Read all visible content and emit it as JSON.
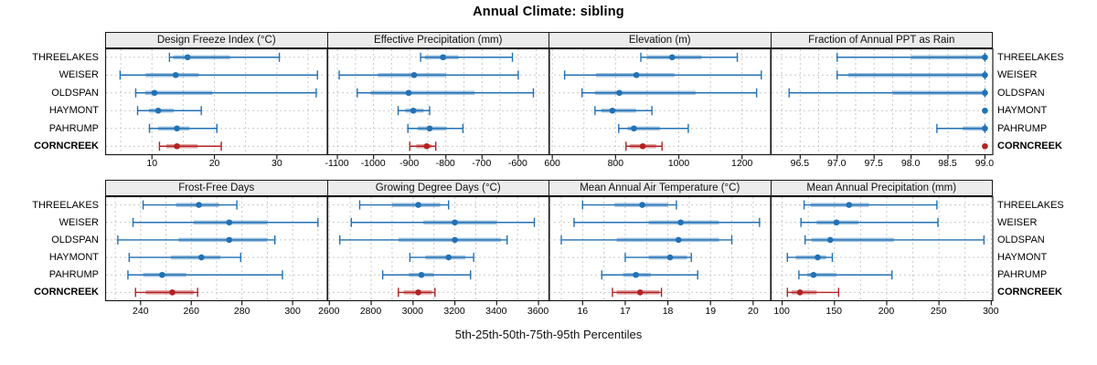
{
  "title": "Annual Climate: sibling",
  "caption": "5th-25th-50th-75th-95th Percentiles",
  "percentile_labels": [
    "5th",
    "25th",
    "50th",
    "75th",
    "95th"
  ],
  "colors": {
    "series_blue": "#2171b5",
    "highlight_red": "#b22222",
    "grid": "#c9c9c9",
    "panel_border": "#1a1a1a",
    "strip_background": "#ececec"
  },
  "stations": [
    {
      "name": "THREELAKES",
      "highlight": false
    },
    {
      "name": "WEISER",
      "highlight": false
    },
    {
      "name": "OLDSPAN",
      "highlight": false
    },
    {
      "name": "HAYMONT",
      "highlight": false
    },
    {
      "name": "PAHRUMP",
      "highlight": false
    },
    {
      "name": "CORNCREEK",
      "highlight": true
    }
  ],
  "chart_data": {
    "type": "scatter",
    "variant": "horizontal percentile interval plot (5-25-50-75-95), 2x4 lattice panels",
    "legend_position": "none",
    "grid": "dashed",
    "panels": [
      {
        "title": "Design Freeze Index (°C)",
        "row": 0,
        "col": 0,
        "xlim": [
          2.5,
          38
        ],
        "minor_step": 5,
        "major_ticks": [
          {
            "v": 10,
            "label": "10"
          },
          {
            "v": 20,
            "label": "20"
          },
          {
            "v": 30,
            "label": "30"
          }
        ],
        "series": {
          "THREELAKES": [
            12.8,
            13.4,
            15.7,
            22.5,
            30.4
          ],
          "WEISER": [
            4.9,
            9.0,
            13.8,
            17.5,
            36.5
          ],
          "OLDSPAN": [
            7.4,
            8.9,
            10.4,
            19.7,
            36.3
          ],
          "HAYMONT": [
            7.7,
            9.5,
            11.0,
            13.5,
            17.9
          ],
          "PAHRUMP": [
            9.6,
            11.0,
            14.0,
            16.0,
            20.4
          ],
          "CORNCREEK": [
            11.2,
            12.3,
            14.0,
            17.3,
            21.1
          ]
        }
      },
      {
        "title": "Effective Precipitation (mm)",
        "row": 0,
        "col": 1,
        "xlim": [
          -1128,
          -515
        ],
        "minor_step": 50,
        "major_ticks": [
          {
            "v": -1100,
            "label": "-1100"
          },
          {
            "v": -1000,
            "label": "-1000"
          },
          {
            "v": -900,
            "label": "-900"
          },
          {
            "v": -800,
            "label": "-800"
          },
          {
            "v": -700,
            "label": "-700"
          },
          {
            "v": -600,
            "label": "-600"
          }
        ],
        "series": {
          "THREELAKES": [
            -870,
            -858,
            -808,
            -765,
            -616
          ],
          "WEISER": [
            -1095,
            -988,
            -888,
            -800,
            -600
          ],
          "OLDSPAN": [
            -1045,
            -1008,
            -903,
            -720,
            -558
          ],
          "HAYMONT": [
            -932,
            -912,
            -890,
            -862,
            -845
          ],
          "PAHRUMP": [
            -905,
            -878,
            -845,
            -798,
            -753
          ],
          "CORNCREEK": [
            -900,
            -882,
            -853,
            -840,
            -828
          ]
        }
      },
      {
        "title": "Elevation (m)",
        "row": 0,
        "col": 2,
        "xlim": [
          588,
          1289
        ],
        "minor_step": 100,
        "major_ticks": [
          {
            "v": 600,
            "label": "600"
          },
          {
            "v": 800,
            "label": "800"
          },
          {
            "v": 1000,
            "label": "1000"
          },
          {
            "v": 1200,
            "label": "1200"
          }
        ],
        "series": {
          "THREELAKES": [
            880,
            899,
            979,
            1072,
            1185
          ],
          "WEISER": [
            639,
            738,
            866,
            986,
            1261
          ],
          "OLDSPAN": [
            694,
            735,
            812,
            1053,
            1246
          ],
          "HAYMONT": [
            735,
            755,
            790,
            865,
            915
          ],
          "PAHRUMP": [
            810,
            838,
            858,
            940,
            1030
          ],
          "CORNCREEK": [
            833,
            845,
            886,
            928,
            947
          ]
        }
      },
      {
        "title": "Fraction of Annual PPT as Rain",
        "row": 0,
        "col": 3,
        "xlim": [
          96.1,
          99.1
        ],
        "minor_step": 0.25,
        "major_ticks": [
          {
            "v": 96.5,
            "label": "96.5"
          },
          {
            "v": 97.0,
            "label": "97.0"
          },
          {
            "v": 97.5,
            "label": "97.5"
          },
          {
            "v": 98.0,
            "label": "98.0"
          },
          {
            "v": 98.5,
            "label": "98.5"
          },
          {
            "v": 99.0,
            "label": "99.0"
          }
        ],
        "series": {
          "THREELAKES": [
            97.0,
            98.0,
            99.0,
            99.0,
            99.0
          ],
          "WEISER": [
            97.0,
            97.15,
            99.0,
            99.0,
            99.0
          ],
          "OLDSPAN": [
            96.35,
            97.75,
            99.0,
            99.0,
            99.0
          ],
          "HAYMONT": [
            99.0,
            99.0,
            99.0,
            99.0,
            99.0
          ],
          "PAHRUMP": [
            98.35,
            98.7,
            99.0,
            99.0,
            99.0
          ],
          "CORNCREEK": [
            99.0,
            99.0,
            99.0,
            99.0,
            99.0
          ]
        }
      },
      {
        "title": "Frost-Free Days",
        "row": 1,
        "col": 0,
        "xlim": [
          226,
          313.5
        ],
        "minor_step": 10,
        "major_ticks": [
          {
            "v": 240,
            "label": "240"
          },
          {
            "v": 260,
            "label": "260"
          },
          {
            "v": 280,
            "label": "280"
          },
          {
            "v": 300,
            "label": "300"
          }
        ],
        "series": {
          "THREELAKES": [
            241,
            254,
            263,
            271,
            278
          ],
          "WEISER": [
            237,
            261,
            275,
            290,
            310
          ],
          "OLDSPAN": [
            231,
            255,
            275,
            290,
            293
          ],
          "HAYMONT": [
            235.5,
            252,
            264,
            271.5,
            279.5
          ],
          "PAHRUMP": [
            235,
            241,
            248.5,
            258,
            296
          ],
          "CORNCREEK": [
            238,
            242,
            252.5,
            261,
            262.5
          ]
        }
      },
      {
        "title": "Growing Degree Days (°C)",
        "row": 1,
        "col": 1,
        "xlim": [
          2590,
          3650
        ],
        "minor_step": 100,
        "major_ticks": [
          {
            "v": 2600,
            "label": "2600"
          },
          {
            "v": 2800,
            "label": "2800"
          },
          {
            "v": 3000,
            "label": "3000"
          },
          {
            "v": 3200,
            "label": "3200"
          },
          {
            "v": 3400,
            "label": "3400"
          },
          {
            "v": 3600,
            "label": "3600"
          }
        ],
        "series": {
          "THREELAKES": [
            2745,
            2900,
            3025,
            3130,
            3170
          ],
          "WEISER": [
            2705,
            3050,
            3200,
            3400,
            3580
          ],
          "OLDSPAN": [
            2650,
            2930,
            3200,
            3420,
            3450
          ],
          "HAYMONT": [
            2985,
            3060,
            3170,
            3250,
            3290
          ],
          "PAHRUMP": [
            2855,
            2980,
            3040,
            3100,
            3275
          ],
          "CORNCREEK": [
            2930,
            2955,
            3025,
            3090,
            3105
          ]
        }
      },
      {
        "title": "Mean Annual Air Temperature (°C)",
        "row": 1,
        "col": 2,
        "xlim": [
          15.2,
          20.4
        ],
        "minor_step": 0.5,
        "major_ticks": [
          {
            "v": 16,
            "label": "16"
          },
          {
            "v": 17,
            "label": "17"
          },
          {
            "v": 18,
            "label": "18"
          },
          {
            "v": 19,
            "label": "19"
          },
          {
            "v": 20,
            "label": "20"
          }
        ],
        "series": {
          "THREELAKES": [
            16.0,
            16.75,
            17.4,
            18.0,
            18.2
          ],
          "WEISER": [
            15.8,
            17.55,
            18.3,
            19.2,
            20.15
          ],
          "OLDSPAN": [
            15.5,
            16.8,
            18.25,
            19.2,
            19.5
          ],
          "HAYMONT": [
            17.0,
            17.55,
            18.05,
            18.45,
            18.55
          ],
          "PAHRUMP": [
            16.45,
            16.95,
            17.25,
            17.6,
            18.7
          ],
          "CORNCREEK": [
            16.7,
            16.8,
            17.35,
            17.8,
            17.85
          ]
        }
      },
      {
        "title": "Mean Annual Precipitation (mm)",
        "row": 1,
        "col": 3,
        "xlim": [
          89,
          301
        ],
        "minor_step": 25,
        "major_ticks": [
          {
            "v": 100,
            "label": "100"
          },
          {
            "v": 150,
            "label": "150"
          },
          {
            "v": 200,
            "label": "200"
          },
          {
            "v": 250,
            "label": "250"
          },
          {
            "v": 300,
            "label": "300"
          }
        ],
        "series": {
          "THREELAKES": [
            121,
            127,
            164,
            183,
            248
          ],
          "WEISER": [
            118,
            133,
            152,
            173,
            249
          ],
          "OLDSPAN": [
            122,
            128,
            146,
            207,
            293
          ],
          "HAYMONT": [
            105,
            113,
            134,
            142,
            148
          ],
          "PAHRUMP": [
            116,
            124,
            130,
            152,
            205
          ],
          "CORNCREEK": [
            105,
            109,
            117,
            133,
            154
          ]
        }
      }
    ]
  }
}
